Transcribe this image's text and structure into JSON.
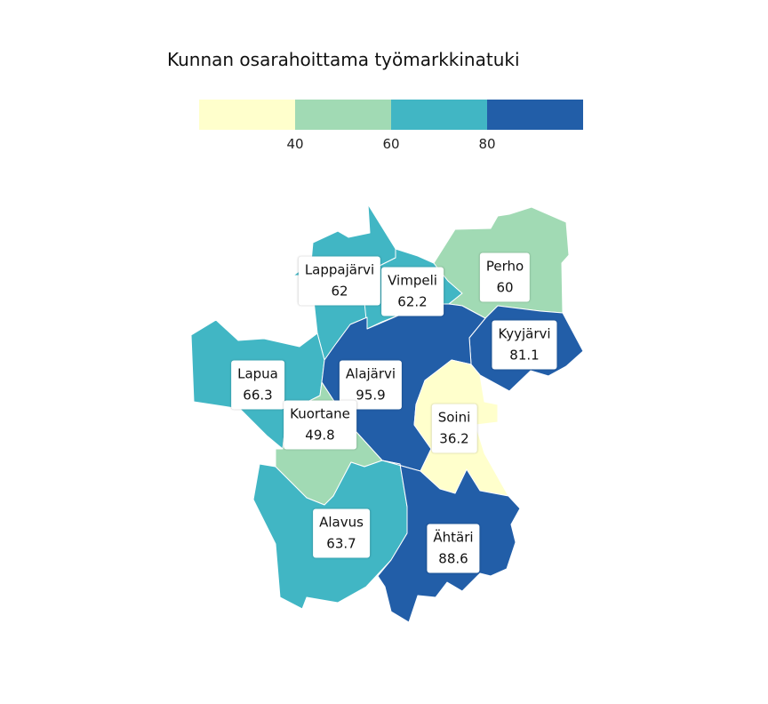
{
  "title": "Kunnan osarahoittama työmarkkinatuki",
  "legend": {
    "colors": [
      "#ffffcc",
      "#a1dab4",
      "#41b6c4",
      "#225ea8"
    ],
    "ticks": [
      "40",
      "60",
      "80"
    ]
  },
  "regions": [
    {
      "name": "Lappajärvi",
      "value": "62",
      "color": "#41b6c4"
    },
    {
      "name": "Vimpeli",
      "value": "62.2",
      "color": "#41b6c4"
    },
    {
      "name": "Perho",
      "value": "60",
      "color": "#a1dab4"
    },
    {
      "name": "Kyyjärvi",
      "value": "81.1",
      "color": "#225ea8"
    },
    {
      "name": "Lapua",
      "value": "66.3",
      "color": "#41b6c4"
    },
    {
      "name": "Alajärvi",
      "value": "95.9",
      "color": "#225ea8"
    },
    {
      "name": "Kuortane",
      "value": "49.8",
      "color": "#a1dab4"
    },
    {
      "name": "Soini",
      "value": "36.2",
      "color": "#ffffcc"
    },
    {
      "name": "Alavus",
      "value": "63.7",
      "color": "#41b6c4"
    },
    {
      "name": "Ähtäri",
      "value": "88.6",
      "color": "#225ea8"
    }
  ]
}
